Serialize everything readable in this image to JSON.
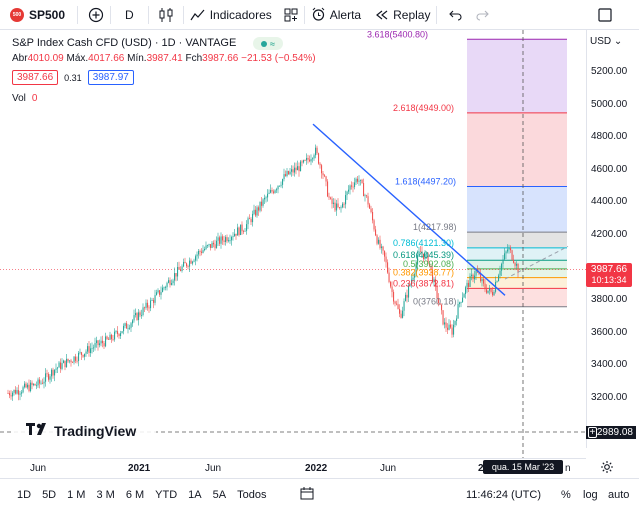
{
  "toolbar": {
    "symbol_badge": "500",
    "symbol": "SP500",
    "interval": "D",
    "indicators": "Indicadores",
    "alert": "Alerta",
    "replay": "Replay"
  },
  "legend": {
    "title": "S&P Index Cash CFD (USD) · 1D · VANTAGE",
    "open_label": "Abr",
    "open": "4010.09",
    "high_label": "Máx.",
    "high": "4017.66",
    "low_label": "Mín.",
    "low": "3987.41",
    "close_label": "Fch",
    "close": "3987.66",
    "change": "−21.53 (−0.54%)",
    "bid": "3987.66",
    "spread": "0.31",
    "ask": "3987.97",
    "vol_label": "Vol",
    "vol_value": "0"
  },
  "price_axis": {
    "currency": "USD",
    "ticks": [
      "5200.00",
      "5000.00",
      "4800.00",
      "4600.00",
      "4400.00",
      "4200.00",
      "4000.00",
      "3800.00",
      "3600.00",
      "3400.00",
      "3200.00"
    ],
    "last_price": "3987.66",
    "countdown": "10:13:34",
    "crosshair_price": "2989.08"
  },
  "time_axis": {
    "labels": [
      "Jun",
      "2021",
      "Jun",
      "2022",
      "Jun",
      "2"
    ],
    "crosshair_date": "qua. 15 Mar '23",
    "partial": "n"
  },
  "fib_labels": [
    "3.618(5400.80)",
    "2.618(4949.00)",
    "1.618(4497.20)",
    "1(4217.98)",
    "0.786(4121.30)",
    "0.618(4045.39)",
    "0.5(3992.08)",
    "0.382(3938.77)",
    "0.236(3872.81)",
    "0(3760.18)"
  ],
  "watermark": "TradingView",
  "bottom": {
    "ranges": [
      "1D",
      "5D",
      "1 M",
      "3 M",
      "6 M",
      "YTD",
      "1A",
      "5A",
      "Todos"
    ],
    "clock": "11:46:24 (UTC)",
    "percent": "%",
    "log": "log",
    "auto": "auto"
  },
  "colors": {
    "up": "#26a69a",
    "down": "#ef5350",
    "trendline": "#2962ff",
    "accent": "#f23645"
  }
}
